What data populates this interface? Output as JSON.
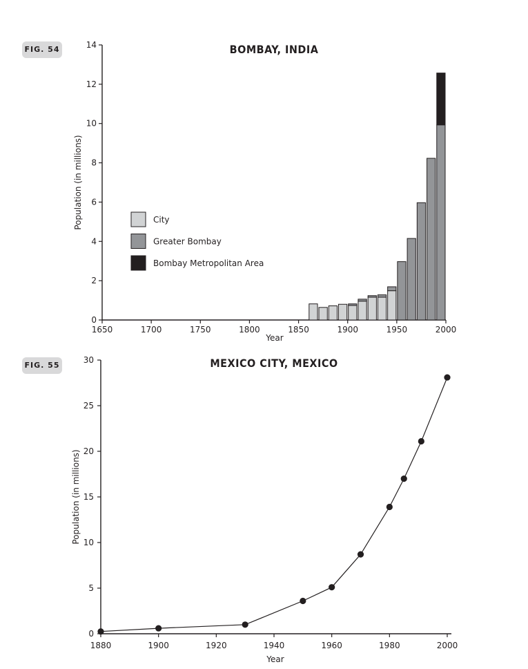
{
  "figures": {
    "fig54_label": "FIG. 54",
    "fig55_label": "FIG. 55"
  },
  "colors": {
    "city": "#d1d3d4",
    "greater": "#939598",
    "metro": "#231f20",
    "ink": "#231f20"
  },
  "chart_data": [
    {
      "type": "bar",
      "stacked": true,
      "title": "BOMBAY, INDIA",
      "xlabel": "Year",
      "ylabel": "Population (in millions)",
      "xlim": [
        1650,
        2000
      ],
      "ylim": [
        0,
        14
      ],
      "xticks": [
        1650,
        1700,
        1750,
        1800,
        1850,
        1900,
        1950,
        2000
      ],
      "yticks": [
        0,
        2,
        4,
        6,
        8,
        10,
        12,
        14
      ],
      "bin_width": 10,
      "legend_position": "center-left",
      "legend": [
        "City",
        "Greater Bombay",
        "Bombay Metropolitan Area"
      ],
      "bars": [
        {
          "x": 1860,
          "city": 0.82,
          "greater": 0,
          "metro": 0
        },
        {
          "x": 1870,
          "city": 0.64,
          "greater": 0,
          "metro": 0
        },
        {
          "x": 1880,
          "city": 0.72,
          "greater": 0,
          "metro": 0
        },
        {
          "x": 1890,
          "city": 0.8,
          "greater": 0,
          "metro": 0
        },
        {
          "x": 1900,
          "city": 0.74,
          "greater": 0.08,
          "metro": 0
        },
        {
          "x": 1910,
          "city": 0.96,
          "greater": 0.1,
          "metro": 0
        },
        {
          "x": 1920,
          "city": 1.16,
          "greater": 0.08,
          "metro": 0
        },
        {
          "x": 1930,
          "city": 1.16,
          "greater": 0.12,
          "metro": 0
        },
        {
          "x": 1940,
          "city": 1.49,
          "greater": 0.2,
          "metro": 0
        },
        {
          "x": 1950,
          "city": 0,
          "greater": 2.97,
          "metro": 0
        },
        {
          "x": 1960,
          "city": 0,
          "greater": 4.15,
          "metro": 0
        },
        {
          "x": 1970,
          "city": 0,
          "greater": 5.97,
          "metro": 0
        },
        {
          "x": 1980,
          "city": 0,
          "greater": 8.23,
          "metro": 0
        },
        {
          "x": 1990,
          "city": 0,
          "greater": 9.93,
          "metro": 2.64
        }
      ]
    },
    {
      "type": "line",
      "title": "MEXICO CITY, MEXICO",
      "xlabel": "Year",
      "ylabel": "Population (in millions)",
      "xlim": [
        1880,
        2000
      ],
      "ylim": [
        0,
        30
      ],
      "xticks": [
        1880,
        1900,
        1920,
        1940,
        1960,
        1980,
        2000
      ],
      "yticks": [
        0,
        5,
        10,
        15,
        20,
        25,
        30
      ],
      "x": [
        1880,
        1900,
        1930,
        1950,
        1960,
        1970,
        1980,
        1985,
        1991,
        2000
      ],
      "y": [
        0.25,
        0.6,
        1.0,
        3.6,
        5.1,
        8.7,
        13.9,
        17.0,
        21.1,
        28.1
      ]
    }
  ]
}
